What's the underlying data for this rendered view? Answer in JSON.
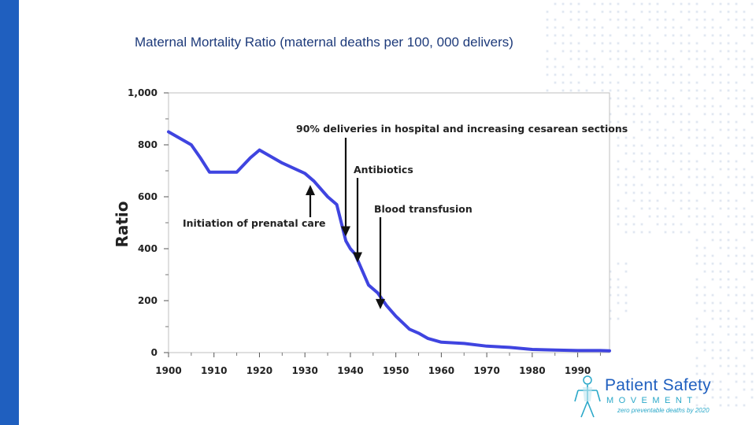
{
  "slide": {
    "title": "Maternal Mortality Ratio (maternal deaths per 100, 000 delivers)"
  },
  "colors": {
    "accent_bar": "#1f5fbf",
    "series_line": "#3f44e0",
    "dots": "#c9d4e6"
  },
  "chart_data": {
    "type": "line",
    "xlabel": "",
    "ylabel": "Ratio",
    "xlim": [
      1900,
      1997
    ],
    "ylim": [
      0,
      1000
    ],
    "x_ticks": [
      "1900",
      "1910",
      "1920",
      "1930",
      "1940",
      "1950",
      "1960",
      "1970",
      "1980",
      "1990"
    ],
    "y_ticks": [
      "0",
      "200",
      "400",
      "600",
      "800",
      "1,000"
    ],
    "grid": false,
    "series": [
      {
        "name": "",
        "x": [
          1900,
          1903,
          1905,
          1907,
          1909,
          1912,
          1915,
          1918,
          1920,
          1925,
          1930,
          1932,
          1935,
          1937,
          1938,
          1939,
          1940,
          1941,
          1942,
          1944,
          1946,
          1948,
          1950,
          1953,
          1955,
          1957,
          1960,
          1965,
          1970,
          1975,
          1980,
          1985,
          1990,
          1995,
          1997
        ],
        "values": [
          850,
          820,
          800,
          750,
          695,
          695,
          695,
          750,
          780,
          730,
          690,
          660,
          600,
          570,
          500,
          430,
          400,
          380,
          340,
          260,
          230,
          180,
          140,
          90,
          75,
          55,
          40,
          35,
          25,
          20,
          12,
          10,
          8,
          8,
          7
        ]
      }
    ],
    "annotations": [
      {
        "label": "90% deliveries in hospital and increasing cesarean sections",
        "x": 1939,
        "y": 450,
        "direction": "down"
      },
      {
        "label": "Antibiotics",
        "x": 1941,
        "y": 350,
        "direction": "down"
      },
      {
        "label": "Blood transfusion",
        "x": 1946,
        "y": 170,
        "direction": "down"
      },
      {
        "label": "Initiation of prenatal care",
        "x": 1931,
        "y": 650,
        "direction": "up"
      }
    ]
  },
  "logo": {
    "title": "Patient Safety",
    "subtitle": "MOVEMENT",
    "tagline": "zero preventable deaths by 2020"
  }
}
